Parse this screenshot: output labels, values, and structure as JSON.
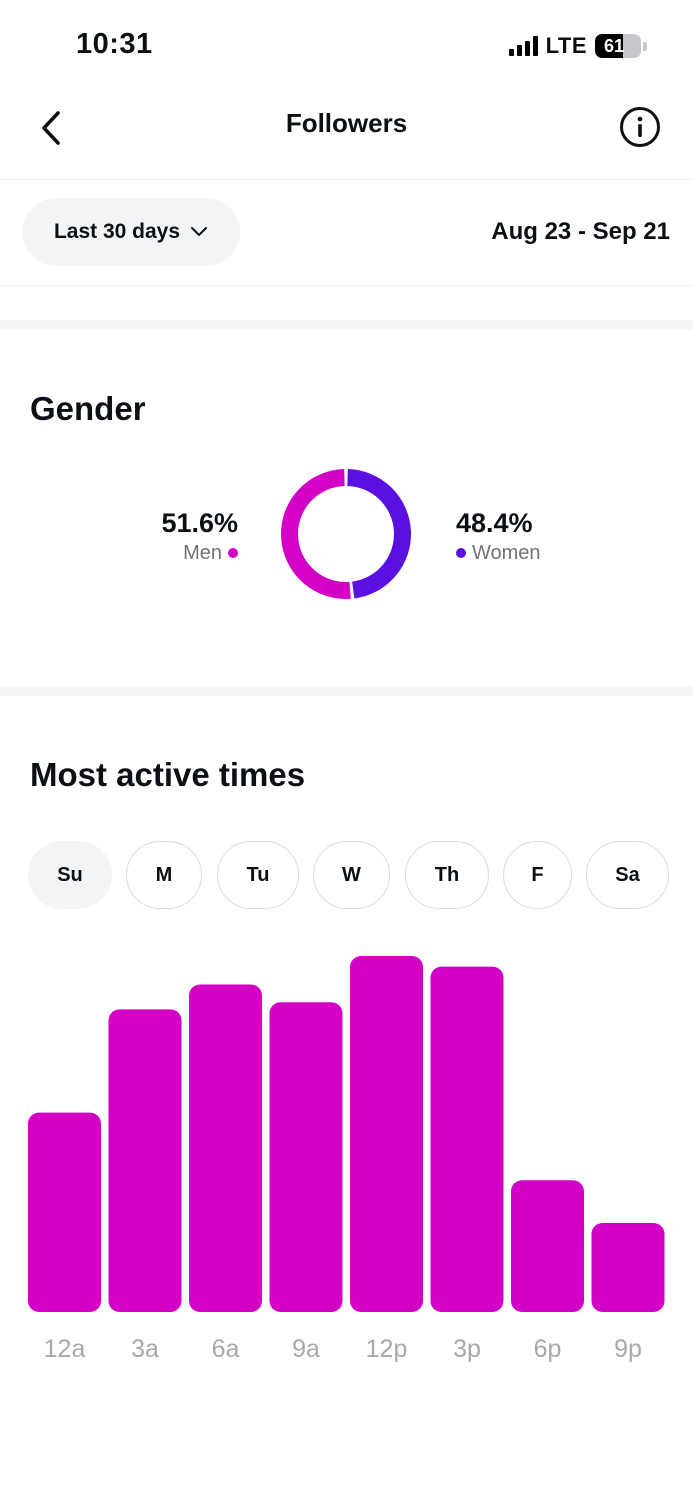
{
  "status_bar": {
    "time": "10:31",
    "network": "LTE",
    "battery": "61",
    "battery_level": 0.61
  },
  "nav": {
    "title": "Followers",
    "back_icon": "chevron-left-icon",
    "info_icon": "info-circle-icon"
  },
  "filter": {
    "period_label": "Last 30 days",
    "date_range": "Aug 23 - Sep 21"
  },
  "gender": {
    "title": "Gender",
    "men": {
      "percent": "51.6%",
      "label": "Men",
      "value": 51.6,
      "color": "#d300c5"
    },
    "women": {
      "percent": "48.4%",
      "label": "Women",
      "value": 48.4,
      "color": "#5b0fe0"
    }
  },
  "active_times": {
    "title": "Most active times",
    "days": [
      "Su",
      "M",
      "Tu",
      "W",
      "Th",
      "F",
      "Sa"
    ],
    "selected_day": "Su"
  },
  "chart_data": {
    "type": "bar",
    "categories": [
      "12a",
      "3a",
      "6a",
      "9a",
      "12p",
      "3p",
      "6p",
      "9p"
    ],
    "values": [
      56,
      85,
      92,
      87,
      100,
      97,
      37,
      25
    ],
    "ylim": [
      0,
      100
    ],
    "bar_color": "#d300c5",
    "grid": false
  },
  "colors": {
    "accent": "#d300c5",
    "secondary": "#5b0fe0",
    "chip_active_bg": "#f2f4f5",
    "tick_label": "#a8a8a8"
  }
}
